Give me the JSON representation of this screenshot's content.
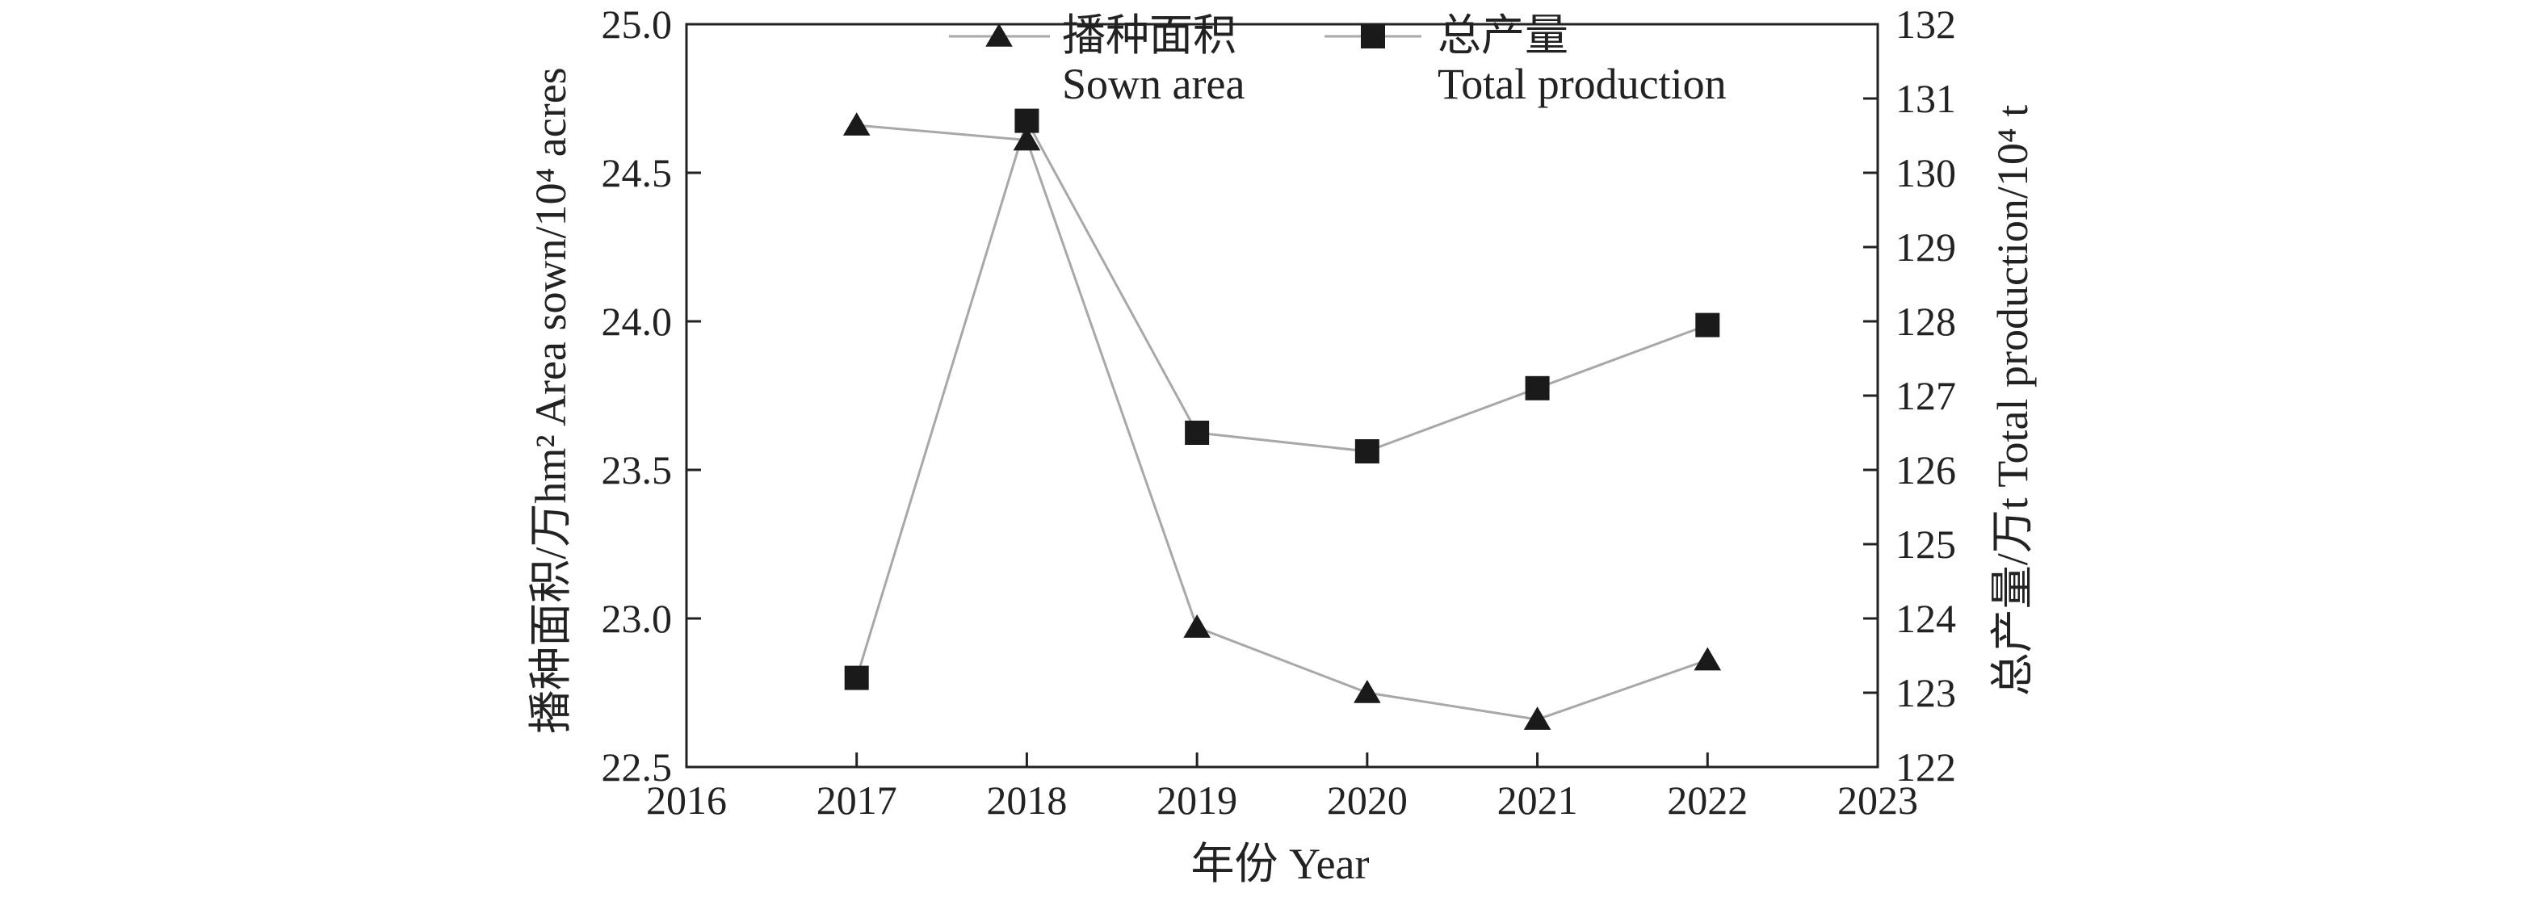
{
  "chart_data": {
    "type": "line",
    "x": [
      2017,
      2018,
      2019,
      2020,
      2021,
      2022
    ],
    "xlabel": "年份 Year",
    "xlim": [
      2016,
      2023
    ],
    "xticks": [
      "2016",
      "2017",
      "2018",
      "2019",
      "2020",
      "2021",
      "2022",
      "2023"
    ],
    "ylabel_left": "播种面积/万hm² Area sown/10⁴ acres",
    "ylim_left": [
      22.5,
      25.0
    ],
    "yticks_left": [
      "22.5",
      "23.0",
      "23.5",
      "24.0",
      "24.5",
      "25.0"
    ],
    "ylabel_right": "总产量/万t Total production/10⁴ t",
    "ylim_right": [
      122,
      132
    ],
    "yticks_right": [
      "122",
      "123",
      "124",
      "125",
      "126",
      "127",
      "128",
      "129",
      "130",
      "131",
      "132"
    ],
    "grid": false,
    "legend_position": "top",
    "series": [
      {
        "name": "播种面积 Sown area",
        "legend_cn": "播种面积",
        "legend_en": "Sown area",
        "axis": "left",
        "marker": "triangle",
        "values": [
          24.66,
          24.61,
          22.97,
          22.75,
          22.66,
          22.86
        ]
      },
      {
        "name": "总产量 Total production",
        "legend_cn": "总产量",
        "legend_en": "Total production",
        "axis": "right",
        "marker": "square",
        "values": [
          123.2,
          130.7,
          126.5,
          126.25,
          127.1,
          127.95
        ]
      }
    ],
    "colors": {
      "line": "#a8a8a8",
      "marker": "#1a1a1a",
      "axis": "#222222"
    }
  }
}
